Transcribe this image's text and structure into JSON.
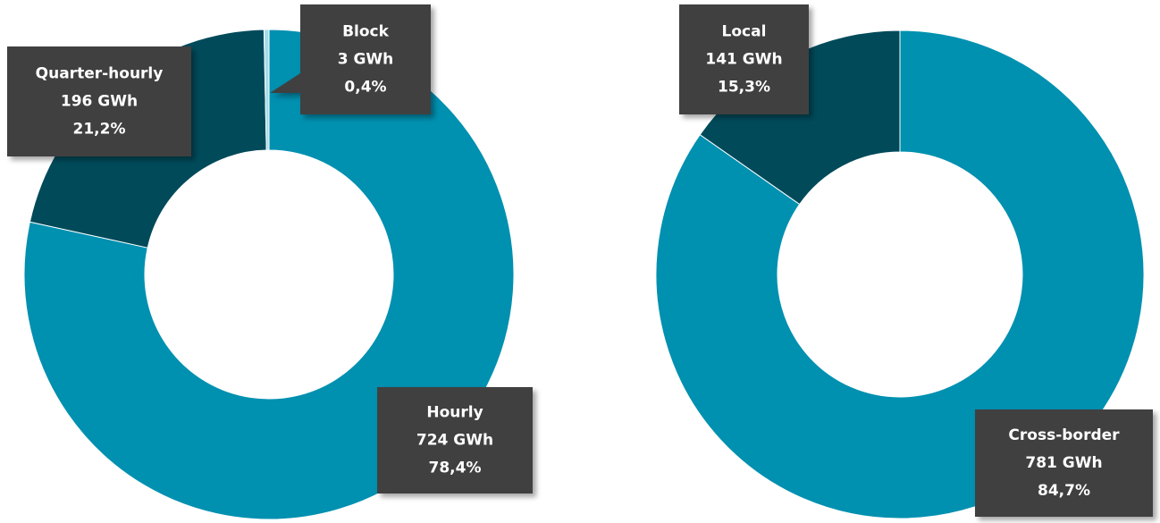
{
  "chart_data": [
    {
      "type": "donut",
      "categories": [
        "Hourly",
        "Quarter-hourly",
        "Block"
      ],
      "values": [
        724,
        196,
        3
      ],
      "value_labels": [
        "724 GWh",
        "196 GWh",
        "3 GWh"
      ],
      "percent_labels": [
        "78,4%",
        "21,2%",
        "0,4%"
      ],
      "colors": [
        "#0090b0",
        "#004a5a",
        "#a6dbe8"
      ]
    },
    {
      "type": "donut",
      "categories": [
        "Cross-border",
        "Local"
      ],
      "values": [
        781,
        141
      ],
      "value_labels": [
        "781 GWh",
        "141 GWh"
      ],
      "percent_labels": [
        "84,7%",
        "15,3%"
      ],
      "colors": [
        "#0090b0",
        "#004a5a"
      ]
    }
  ]
}
